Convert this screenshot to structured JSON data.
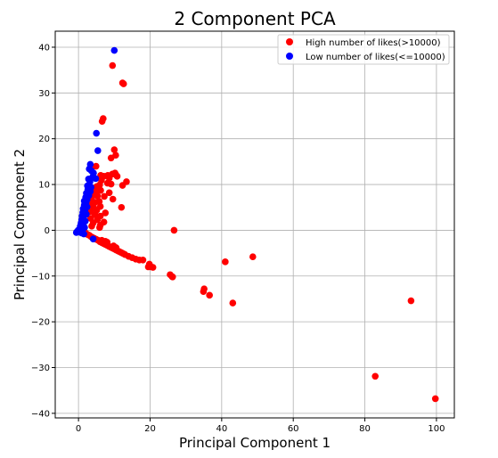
{
  "chart_data": {
    "type": "scatter",
    "title": "2 Component PCA",
    "xlabel": "Principal Component 1",
    "ylabel": "Principal Component 2",
    "xlim": [
      -6.5,
      105
    ],
    "ylim": [
      -41,
      43.5
    ],
    "xticks": [
      0,
      20,
      40,
      60,
      80,
      100
    ],
    "yticks": [
      -40,
      -30,
      -20,
      -10,
      0,
      10,
      20,
      30,
      40
    ],
    "grid": true,
    "legend_position": "top-right",
    "series": [
      {
        "name": "High number of likes(>10000)",
        "color": "#ff0000",
        "points": [
          [
            9.5,
            36
          ],
          [
            12.3,
            32.2
          ],
          [
            12.6,
            32
          ],
          [
            6.6,
            23.8
          ],
          [
            6.9,
            24.4
          ],
          [
            10,
            17.6
          ],
          [
            10.4,
            16.4
          ],
          [
            9.1,
            15.8
          ],
          [
            4.9,
            14
          ],
          [
            3.6,
            13.5
          ],
          [
            10.2,
            12.5
          ],
          [
            10.4,
            12.2
          ],
          [
            10.8,
            11.8
          ],
          [
            9.5,
            12.3
          ],
          [
            8.2,
            12
          ],
          [
            8.6,
            11.4
          ],
          [
            7.1,
            11.8
          ],
          [
            6.2,
            12
          ],
          [
            13.4,
            10.6
          ],
          [
            12.3,
            9.8
          ],
          [
            9.1,
            10.1
          ],
          [
            8.1,
            10.3
          ],
          [
            6.4,
            10.9
          ],
          [
            5.9,
            9.9
          ],
          [
            5.2,
            9.6
          ],
          [
            4.3,
            9.2
          ],
          [
            4.8,
            8.4
          ],
          [
            6.2,
            8.7
          ],
          [
            8.6,
            8.2
          ],
          [
            7.2,
            7.4
          ],
          [
            5.3,
            7.5
          ],
          [
            4.4,
            7.7
          ],
          [
            3.6,
            7
          ],
          [
            4.6,
            6.1
          ],
          [
            5.8,
            6.3
          ],
          [
            9.6,
            6.8
          ],
          [
            4.2,
            5.1
          ],
          [
            3.5,
            5.6
          ],
          [
            6.1,
            5.2
          ],
          [
            12,
            5
          ],
          [
            7.5,
            3.8
          ],
          [
            5.1,
            4.4
          ],
          [
            3.3,
            4.1
          ],
          [
            4.6,
            3.4
          ],
          [
            6.1,
            3.1
          ],
          [
            3.4,
            2.6
          ],
          [
            5.3,
            2.3
          ],
          [
            7.1,
            1.8
          ],
          [
            4.1,
            1.6
          ],
          [
            6.1,
            1.1
          ],
          [
            3.7,
            0.9
          ],
          [
            5.9,
            0.6
          ],
          [
            26.7,
            0
          ],
          [
            2,
            -0.6
          ],
          [
            2.5,
            -0.9
          ],
          [
            3,
            -1.1
          ],
          [
            3.5,
            -1.4
          ],
          [
            4,
            -1.6
          ],
          [
            4.5,
            -1.8
          ],
          [
            5,
            -2
          ],
          [
            5.5,
            -2.2
          ],
          [
            6,
            -2.5
          ],
          [
            6.5,
            -2.7
          ],
          [
            7,
            -2.9
          ],
          [
            7.5,
            -3.1
          ],
          [
            8,
            -3.3
          ],
          [
            8.5,
            -3.5
          ],
          [
            9,
            -3.7
          ],
          [
            9.5,
            -3.9
          ],
          [
            10,
            -4.1
          ],
          [
            10.5,
            -4.3
          ],
          [
            11,
            -4.5
          ],
          [
            11.5,
            -4.7
          ],
          [
            12,
            -4.9
          ],
          [
            12.5,
            -5.1
          ],
          [
            13,
            -5.3
          ],
          [
            14,
            -5.7
          ],
          [
            15,
            -6
          ],
          [
            16,
            -6.3
          ],
          [
            17,
            -6.5
          ],
          [
            18,
            -6.5
          ],
          [
            6.5,
            -2.2
          ],
          [
            7.5,
            -2.4
          ],
          [
            8,
            -2.6
          ],
          [
            9.8,
            -3.4
          ],
          [
            10.5,
            -3.8
          ],
          [
            19.8,
            -7.4
          ],
          [
            20.3,
            -8
          ],
          [
            20.8,
            -8.1
          ],
          [
            19.5,
            -8
          ],
          [
            25.6,
            -9.7
          ],
          [
            26.1,
            -10.1
          ],
          [
            26.3,
            -10.2
          ],
          [
            41,
            -6.9
          ],
          [
            48.7,
            -5.8
          ],
          [
            35.1,
            -12.8
          ],
          [
            34.9,
            -13.4
          ],
          [
            36.6,
            -14.2
          ],
          [
            43.1,
            -15.9
          ],
          [
            92.9,
            -15.4
          ],
          [
            82.9,
            -31.9
          ],
          [
            99.7,
            -36.8
          ]
        ]
      },
      {
        "name": "Low number of likes(<=10000)",
        "color": "#0000ff",
        "points": [
          [
            10,
            39.3
          ],
          [
            5,
            21.2
          ],
          [
            5.4,
            17.4
          ],
          [
            3.3,
            14.4
          ],
          [
            3,
            13.4
          ],
          [
            3.6,
            13
          ],
          [
            4.2,
            12.5
          ],
          [
            4,
            11.7
          ],
          [
            4.8,
            11.3
          ],
          [
            2.8,
            11.2
          ],
          [
            3.2,
            10.6
          ],
          [
            2.5,
            9.7
          ],
          [
            3.5,
            9.4
          ],
          [
            2.6,
            8.9
          ],
          [
            3.3,
            8.5
          ],
          [
            2.2,
            8.1
          ],
          [
            2.9,
            7.6
          ],
          [
            2,
            7.2
          ],
          [
            2.4,
            6.7
          ],
          [
            1.6,
            6.4
          ],
          [
            2.1,
            6
          ],
          [
            1.6,
            5.5
          ],
          [
            2.4,
            5.1
          ],
          [
            1.3,
            4.7
          ],
          [
            1.8,
            4.3
          ],
          [
            1.2,
            3.9
          ],
          [
            2.2,
            3.5
          ],
          [
            1,
            3.1
          ],
          [
            1.4,
            2.7
          ],
          [
            0.9,
            2.3
          ],
          [
            1.9,
            2
          ],
          [
            0.7,
            1.6
          ],
          [
            1.2,
            1.2
          ],
          [
            0.5,
            0.9
          ],
          [
            1.7,
            0.6
          ],
          [
            0.3,
            0.3
          ],
          [
            1.1,
            0.2
          ],
          [
            -0.1,
            0
          ],
          [
            0.6,
            -0.1
          ],
          [
            -0.4,
            -0.3
          ],
          [
            0.2,
            -0.4
          ],
          [
            -0.6,
            -0.5
          ],
          [
            0.9,
            -0.6
          ],
          [
            1.5,
            -0.8
          ],
          [
            4.1,
            -1.9
          ]
        ]
      }
    ]
  }
}
